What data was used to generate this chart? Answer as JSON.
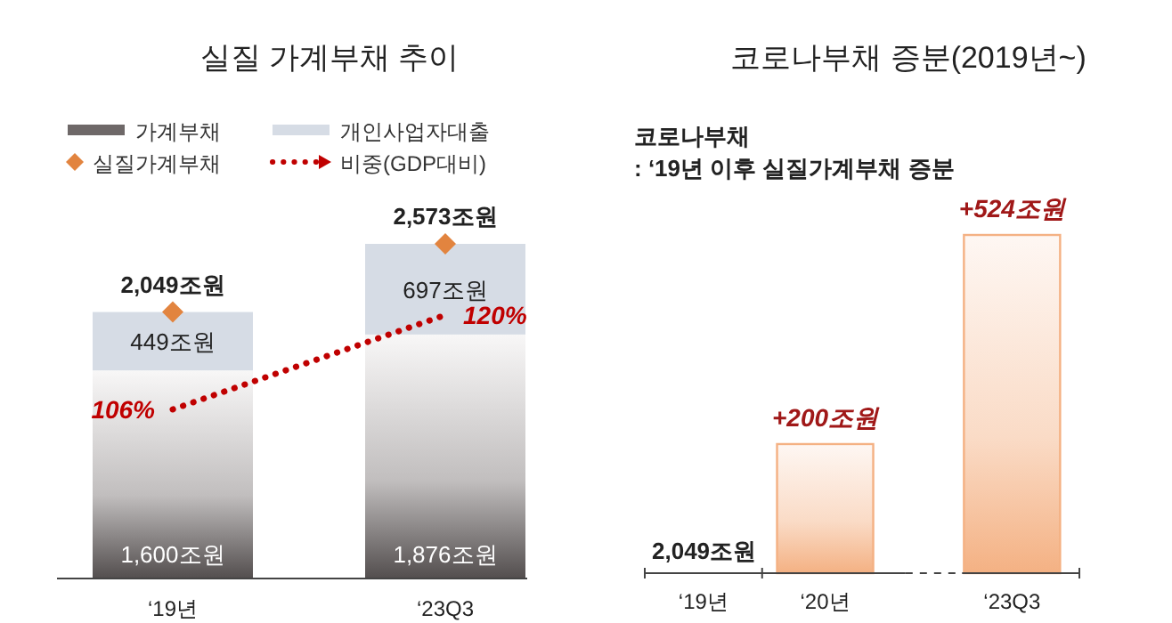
{
  "chart_data": [
    {
      "type": "bar",
      "title": "실질 가계부채 추이",
      "categories": [
        "‘19년",
        "‘23Q3"
      ],
      "stacked": true,
      "legend": "top",
      "tick_labels": "x",
      "series": [
        {
          "name": "가계부채",
          "type": "bar",
          "color": "#6e6868",
          "values": [
            1600,
            1876
          ],
          "value_labels": [
            "1,600조원",
            "1,876조원"
          ]
        },
        {
          "name": "개인사업자대출",
          "type": "bar",
          "color": "#d6dce5",
          "values": [
            449,
            697
          ],
          "value_labels": [
            "449조원",
            "697조원"
          ]
        },
        {
          "name": "실질가계부채",
          "type": "scatter",
          "marker": "diamond",
          "color": "#e2843f",
          "values": [
            2049,
            2573
          ],
          "value_labels": [
            "2,049조원",
            "2,573조원"
          ]
        },
        {
          "name": "비중(GDP대비)",
          "type": "line",
          "axis": "y2",
          "line_style": "dotted",
          "color": "#c00000",
          "values": [
            106,
            120
          ],
          "value_labels": [
            "106%",
            "120%"
          ]
        }
      ]
    },
    {
      "type": "bar",
      "title": "코로나부채 증분(2019년~)",
      "subtitle": "코로나부채\n: ‘19년 이후 실질가계부채 증분",
      "categories": [
        "‘19년",
        "‘20년",
        "‘23Q3"
      ],
      "tick_labels": "x",
      "color": "#f4b183",
      "values": [
        null,
        200,
        524
      ],
      "value_labels": [
        null,
        "+200조원",
        "+524조원"
      ],
      "annotations": [
        "2,049조원"
      ]
    }
  ]
}
